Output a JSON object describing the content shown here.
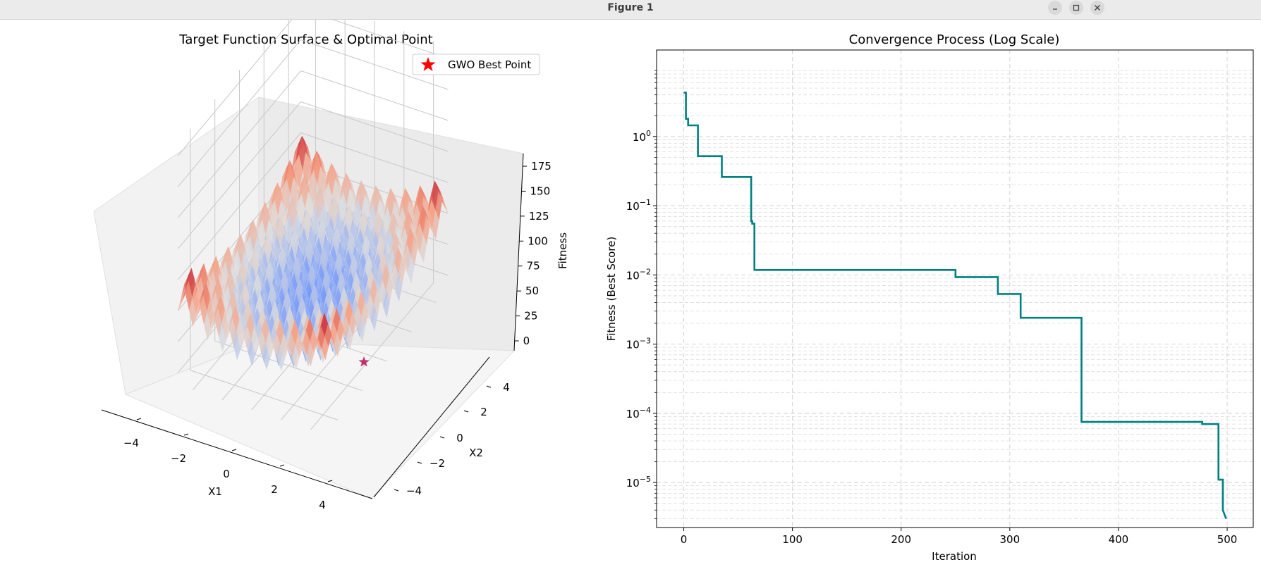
{
  "window": {
    "title": "Figure 1",
    "buttons": [
      "minimize",
      "maximize",
      "close"
    ]
  },
  "chart_data": [
    {
      "type": "surface3d",
      "title": "Target Function Surface & Optimal Point",
      "xlabel": "X1",
      "ylabel": "X2",
      "zlabel": "Fitness",
      "xticks": [
        "−4",
        "−2",
        "0",
        "2",
        "4"
      ],
      "yticks": [
        "−4",
        "−2",
        "0",
        "2",
        "4"
      ],
      "zticks": [
        "0",
        "25",
        "50",
        "75",
        "100",
        "125",
        "150",
        "175"
      ],
      "xlim": [
        -5,
        5
      ],
      "ylim": [
        -5,
        5
      ],
      "zlim": [
        -10,
        185
      ],
      "colormap": "coolwarm",
      "legend": {
        "label": "GWO Best Point",
        "marker": "star",
        "color": "#ff0000",
        "loc": "upper right"
      },
      "best_point": {
        "x1": 0,
        "x2": 0,
        "fitness": 0
      }
    },
    {
      "type": "line",
      "title": "Convergence Process (Log Scale)",
      "xlabel": "Iteration",
      "ylabel": "Fitness (Best Score)",
      "xlim": [
        -25,
        524
      ],
      "ylog10lim": [
        -5.65,
        1.25
      ],
      "xticks": [
        "0",
        "100",
        "200",
        "300",
        "400",
        "500"
      ],
      "yticks": [
        "10",
        "10",
        "10",
        "10",
        "10",
        "10"
      ],
      "ytick_exponents": [
        "0",
        "−1",
        "−2",
        "−3",
        "−4",
        "−5"
      ],
      "grid": true,
      "line_color": "#008080",
      "series": [
        {
          "name": "Best Score",
          "x": [
            0,
            2,
            2,
            4,
            4,
            13,
            13,
            35,
            35,
            62,
            62,
            63,
            63,
            65,
            65,
            250,
            250,
            289,
            289,
            310,
            310,
            366,
            366,
            477,
            477,
            492,
            492,
            496,
            496,
            499
          ],
          "y": [
            4.3,
            4.3,
            1.8,
            1.8,
            1.45,
            1.45,
            0.52,
            0.52,
            0.26,
            0.26,
            0.06,
            0.06,
            0.055,
            0.055,
            0.0118,
            0.0118,
            0.0093,
            0.0093,
            0.0053,
            0.0053,
            0.0024,
            0.0024,
            7.5e-05,
            7.5e-05,
            7e-05,
            7e-05,
            1.1e-05,
            1.1e-05,
            4e-06,
            3e-06
          ]
        }
      ]
    }
  ]
}
